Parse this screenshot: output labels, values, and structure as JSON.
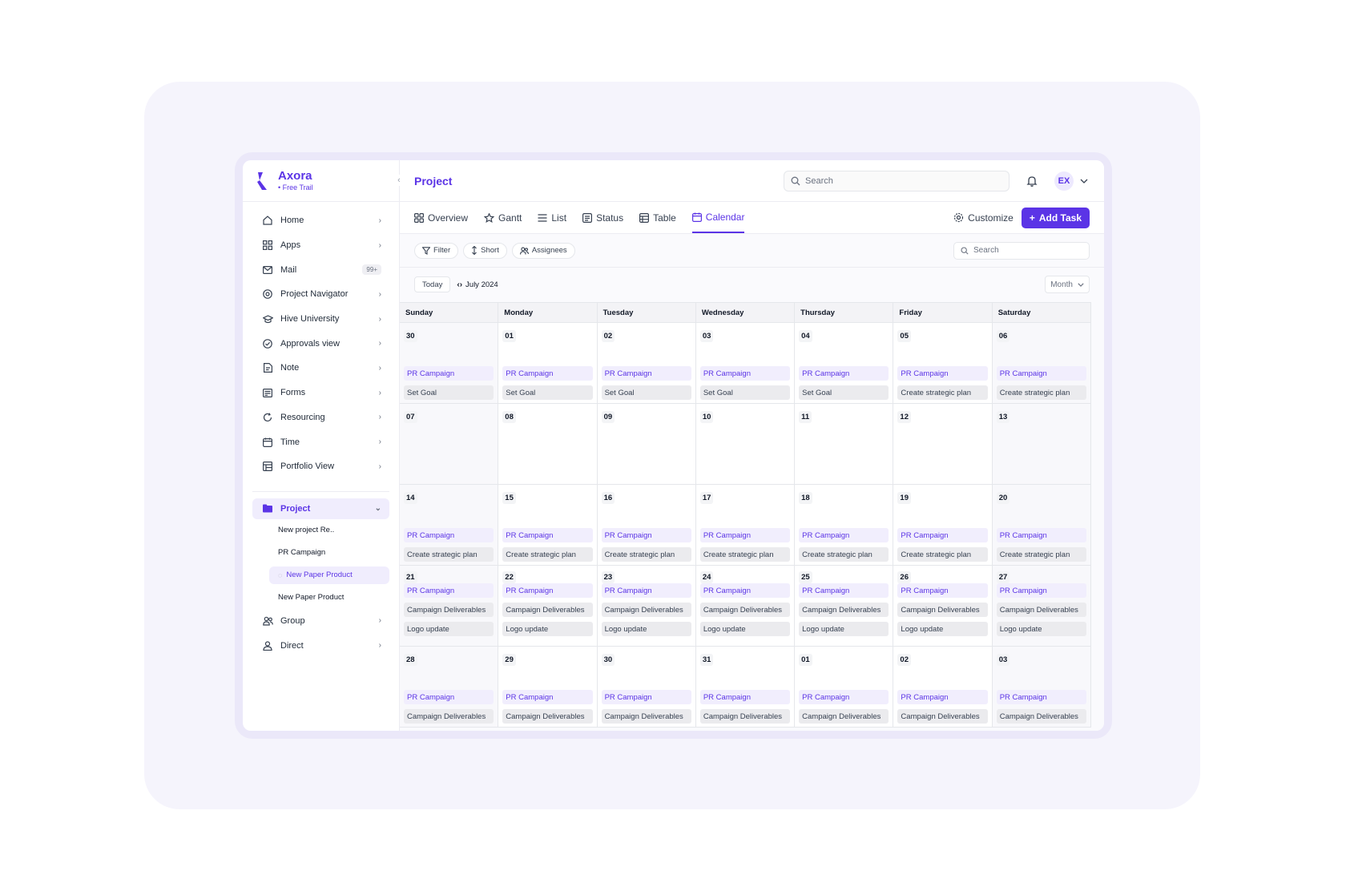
{
  "brand": {
    "name": "Axora",
    "sub": "• Free Trail"
  },
  "sidebar": {
    "items": [
      {
        "id": "home",
        "label": "Home",
        "icon": "home-icon"
      },
      {
        "id": "apps",
        "label": "Apps",
        "icon": "apps-icon"
      },
      {
        "id": "mail",
        "label": "Mail",
        "icon": "mail-icon",
        "badge": "99+"
      },
      {
        "id": "project-navigator",
        "label": "Project Navigator",
        "icon": "target-icon"
      },
      {
        "id": "hive-university",
        "label": "Hive University",
        "icon": "graduation-cap-icon"
      },
      {
        "id": "approvals-view",
        "label": "Approvals view",
        "icon": "check-circle-icon"
      },
      {
        "id": "note",
        "label": "Note",
        "icon": "note-icon"
      },
      {
        "id": "forms",
        "label": "Forms",
        "icon": "forms-icon"
      },
      {
        "id": "resourcing",
        "label": "Resourcing",
        "icon": "refresh-icon"
      },
      {
        "id": "time",
        "label": "Time",
        "icon": "calendar-icon"
      },
      {
        "id": "portfolio-view",
        "label": "Portfolio View",
        "icon": "portfolio-icon"
      }
    ],
    "project": {
      "label": "Project",
      "children": [
        "New project Re..",
        "PR Campaign",
        "New Paper Product",
        "New Paper Product"
      ]
    },
    "group": "Group",
    "direct": "Direct"
  },
  "header": {
    "title": "Project",
    "search_placeholder": "Search",
    "avatar": "EX"
  },
  "tabs": [
    "Overview",
    "Gantt",
    "List",
    "Status",
    "Table",
    "Calendar"
  ],
  "active_tab": "Calendar",
  "toolbar": {
    "customize": "Customize",
    "add_task": "Add Task"
  },
  "filters": {
    "filter": "Filter",
    "short": "Short",
    "assignees": "Assignees",
    "search_placeholder": "Search"
  },
  "calendar": {
    "today": "Today",
    "month": "July 2024",
    "view": "Month",
    "days": [
      "Sunday",
      "Monday",
      "Tuesday",
      "Wednesday",
      "Thursday",
      "Friday",
      "Saturday"
    ],
    "weeks": [
      {
        "compact": false,
        "cells": [
          {
            "d": "30",
            "ev": [
              "PR Campaign",
              "Set Goal"
            ]
          },
          {
            "d": "01",
            "ev": [
              "PR Campaign",
              "Set Goal"
            ]
          },
          {
            "d": "02",
            "ev": [
              "PR Campaign",
              "Set Goal"
            ]
          },
          {
            "d": "03",
            "ev": [
              "PR Campaign",
              "Set Goal"
            ]
          },
          {
            "d": "04",
            "ev": [
              "PR Campaign",
              "Set Goal"
            ]
          },
          {
            "d": "05",
            "ev": [
              "PR Campaign",
              "Create strategic plan"
            ]
          },
          {
            "d": "06",
            "ev": [
              "PR Campaign",
              "Create strategic plan"
            ]
          }
        ]
      },
      {
        "compact": false,
        "cells": [
          {
            "d": "07",
            "ev": []
          },
          {
            "d": "08",
            "ev": []
          },
          {
            "d": "09",
            "ev": []
          },
          {
            "d": "10",
            "ev": []
          },
          {
            "d": "11",
            "ev": []
          },
          {
            "d": "12",
            "ev": []
          },
          {
            "d": "13",
            "ev": []
          }
        ]
      },
      {
        "compact": false,
        "cells": [
          {
            "d": "14",
            "ev": [
              "PR Campaign",
              "Create strategic plan"
            ]
          },
          {
            "d": "15",
            "ev": [
              "PR Campaign",
              "Create strategic plan"
            ]
          },
          {
            "d": "16",
            "ev": [
              "PR Campaign",
              "Create strategic plan"
            ]
          },
          {
            "d": "17",
            "ev": [
              "PR Campaign",
              "Create strategic plan"
            ]
          },
          {
            "d": "18",
            "ev": [
              "PR Campaign",
              "Create strategic plan"
            ]
          },
          {
            "d": "19",
            "ev": [
              "PR Campaign",
              "Create strategic plan"
            ]
          },
          {
            "d": "20",
            "ev": [
              "PR Campaign",
              "Create strategic plan"
            ]
          }
        ]
      },
      {
        "compact": true,
        "cells": [
          {
            "d": "21",
            "ev": [
              "PR Campaign",
              "Campaign Deliverables",
              "Logo update"
            ]
          },
          {
            "d": "22",
            "ev": [
              "PR Campaign",
              "Campaign Deliverables",
              "Logo update"
            ]
          },
          {
            "d": "23",
            "ev": [
              "PR Campaign",
              "Campaign Deliverables",
              "Logo update"
            ]
          },
          {
            "d": "24",
            "ev": [
              "PR Campaign",
              "Campaign Deliverables",
              "Logo update"
            ]
          },
          {
            "d": "25",
            "ev": [
              "PR Campaign",
              "Campaign Deliverables",
              "Logo update"
            ]
          },
          {
            "d": "26",
            "ev": [
              "PR Campaign",
              "Campaign Deliverables",
              "Logo update"
            ]
          },
          {
            "d": "27",
            "ev": [
              "PR Campaign",
              "Campaign Deliverables",
              "Logo update"
            ]
          }
        ]
      },
      {
        "compact": false,
        "cells": [
          {
            "d": "28",
            "ev": [
              "PR Campaign",
              "Campaign Deliverables"
            ]
          },
          {
            "d": "29",
            "ev": [
              "PR Campaign",
              "Campaign Deliverables"
            ]
          },
          {
            "d": "30",
            "ev": [
              "PR Campaign",
              "Campaign Deliverables"
            ]
          },
          {
            "d": "31",
            "ev": [
              "PR Campaign",
              "Campaign Deliverables"
            ]
          },
          {
            "d": "01",
            "ev": [
              "PR Campaign",
              "Campaign Deliverables"
            ]
          },
          {
            "d": "02",
            "ev": [
              "PR Campaign",
              "Campaign Deliverables"
            ]
          },
          {
            "d": "03",
            "ev": [
              "PR Campaign",
              "Campaign Deliverables"
            ]
          }
        ]
      }
    ]
  },
  "colors": {
    "accent": "#5b34e6",
    "accent_soft": "#f1eefd",
    "task_bg": "#ebebee"
  }
}
